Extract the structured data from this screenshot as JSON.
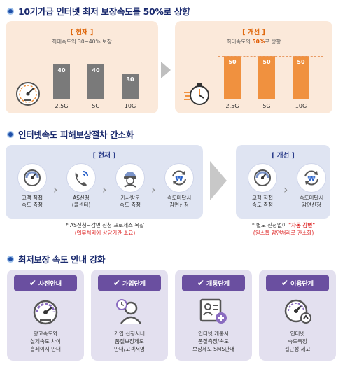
{
  "section1": {
    "title": "10기가급 인터넷 최저 보장속도를 50%로 상향",
    "current": {
      "label": "[ 현재 ]",
      "subtitle": "최대속도의 30~40% 보장",
      "bars": [
        {
          "category": "2.5G",
          "value": 40
        },
        {
          "category": "5G",
          "value": 40
        },
        {
          "category": "10G",
          "value": 30
        }
      ]
    },
    "improved": {
      "label": "[ 개선 ]",
      "subtitle_pre": "최대속도의 ",
      "subtitle_highlight": "50%",
      "subtitle_post": "로 상향",
      "bars": [
        {
          "category": "2.5G",
          "value": 50
        },
        {
          "category": "5G",
          "value": 50
        },
        {
          "category": "10G",
          "value": 50
        }
      ]
    }
  },
  "section2": {
    "title": "인터넷속도 피해보상절차 간소화",
    "current": {
      "label": "[ 현재 ]",
      "steps": [
        {
          "icon": "speedometer-icon",
          "label": "고객 직접\n속도 측정"
        },
        {
          "icon": "phone-call-icon",
          "label": "AS신청\n(콜센터)"
        },
        {
          "icon": "technician-icon",
          "label": "기사방문\n속도 측정"
        },
        {
          "icon": "won-refresh-icon",
          "label": "속도미달시\n감면신청"
        }
      ],
      "note_line1": "* AS신청~감면 신청 프로세스 복잡",
      "note_line2": "(업무처리에 상당기간 소요)"
    },
    "improved": {
      "label": "[ 개선 ]",
      "steps": [
        {
          "icon": "speedometer-icon",
          "label": "고객 직접\n속도 측정"
        },
        {
          "icon": "won-refresh-icon",
          "label": "속도미달시\n감면신청"
        }
      ],
      "note_line1_pre": "* 별도 신청없이 ",
      "note_line1_highlight": "\"자동 감면\"",
      "note_line2": "(원스톱 감면처리로 간소화)"
    }
  },
  "section3": {
    "title": "최저보장 속도 안내 강화",
    "cards": [
      {
        "tab": "사전안내",
        "icon": "speed-gauge-icon",
        "text": "광고속도와\n실제속도 차이\n홈페이지 안내"
      },
      {
        "tab": "가입단계",
        "icon": "user-clock-icon",
        "text": "가입 신청서내\n품질보장제도\n안내/고객서명"
      },
      {
        "tab": "개통단계",
        "icon": "id-card-plus-icon",
        "text": "인터넷 개통시\n품질측정/속도\n보장제도 SMS안내"
      },
      {
        "tab": "이용단계",
        "icon": "gauge-up-icon",
        "text": "인터넷\n속도측정\n접근성 제고"
      }
    ]
  },
  "colors": {
    "navy": "#1a2a6e",
    "orange": "#f0913f",
    "gray_bar": "#7a7a7a",
    "purple": "#6a4fa0",
    "blue_panel": "#dfe4f2",
    "orange_panel": "#fbe9da",
    "highlight_red": "#e05a00"
  }
}
